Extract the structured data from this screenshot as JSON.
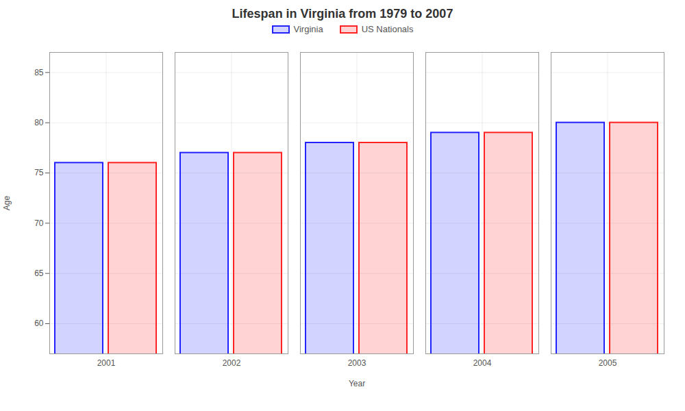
{
  "chart_data": {
    "type": "bar",
    "title": "Lifespan in Virginia from 1979 to 2007",
    "x_label": "Year",
    "y_label": "Age",
    "categories": [
      "2001",
      "2002",
      "2003",
      "2004",
      "2005"
    ],
    "series": [
      {
        "name": "Virginia",
        "color": "#2222ff",
        "values": [
          76,
          77,
          78,
          79,
          80
        ]
      },
      {
        "name": "US Nationals",
        "color": "#ff2222",
        "values": [
          76,
          77,
          78,
          79,
          80
        ]
      }
    ],
    "ylim": [
      57,
      87
    ],
    "yticks": [
      60,
      65,
      70,
      75,
      80,
      85
    ],
    "grid": true,
    "legend": "top"
  }
}
